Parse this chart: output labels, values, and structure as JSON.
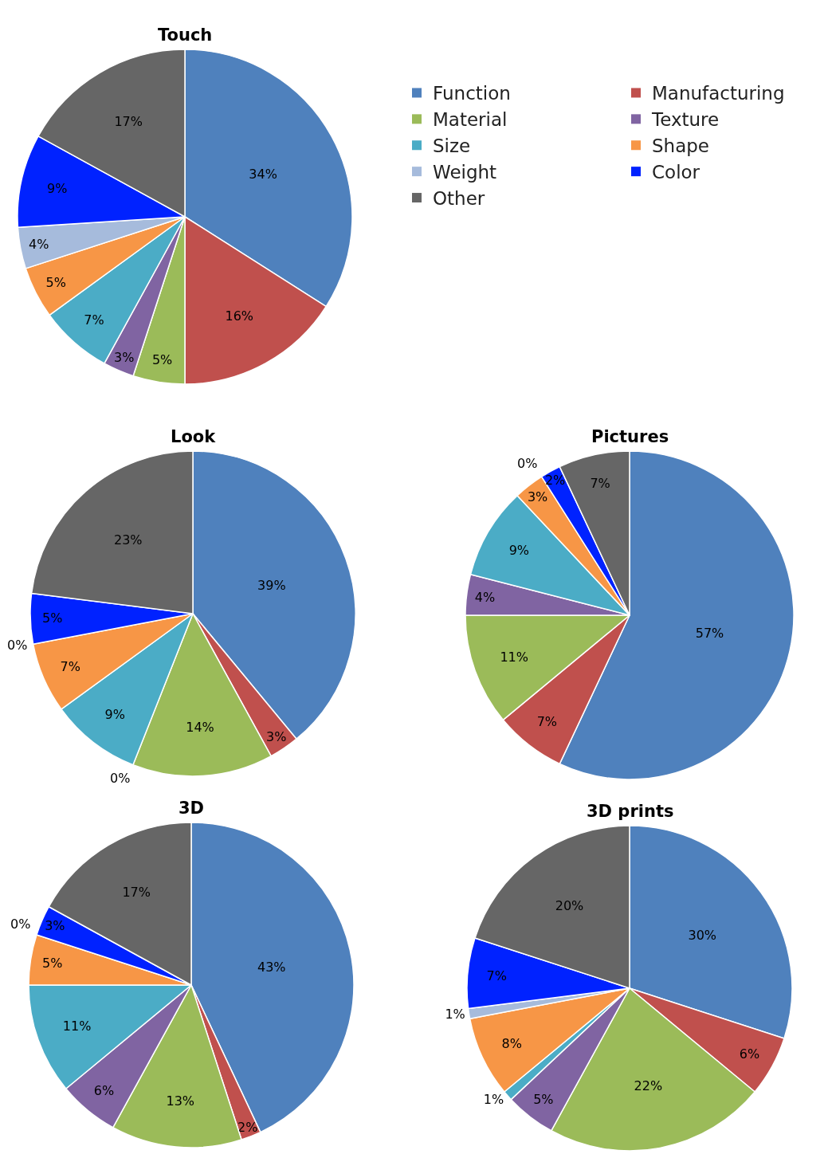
{
  "chart_data": [
    {
      "type": "pie",
      "title": "Touch",
      "legend": "right",
      "categories": [
        "Function",
        "Manufacturing",
        "Material",
        "Texture",
        "Size",
        "Shape",
        "Weight",
        "Color",
        "Other"
      ],
      "values": [
        34,
        16,
        5,
        3,
        7,
        5,
        4,
        9,
        17
      ],
      "value_labels": [
        "34%",
        "16%",
        "5%",
        "3%",
        "7%",
        "5%",
        "4%",
        "9%",
        "17%"
      ],
      "colors": [
        "#4f81bd",
        "#c0504d",
        "#9bbb59",
        "#8064a2",
        "#4bacc6",
        "#f79646",
        "#a6bbdc",
        "#0022ff",
        "#666666"
      ]
    },
    {
      "type": "pie",
      "title": "Look",
      "categories": [
        null,
        null,
        null,
        null,
        null,
        null,
        null,
        null,
        null
      ],
      "values": [
        39,
        3,
        14,
        0,
        9,
        7,
        0,
        5,
        23
      ],
      "value_labels": [
        "39%",
        "3%",
        "14%",
        "0%",
        "9%",
        "7%",
        "0%",
        "5%",
        "23%"
      ],
      "colors": [
        "#4f81bd",
        "#c0504d",
        "#9bbb59",
        "#8064a2",
        "#4bacc6",
        "#f79646",
        "#a6bbdc",
        "#0022ff",
        "#666666"
      ]
    },
    {
      "type": "pie",
      "title": "Pictures",
      "categories": [
        null,
        null,
        null,
        null,
        null,
        null,
        null,
        null,
        null
      ],
      "values": [
        57,
        7,
        11,
        4,
        9,
        3,
        0,
        2,
        7
      ],
      "value_labels": [
        "57%",
        "7%",
        "11%",
        "4%",
        "9%",
        "3%",
        "0%",
        "2%",
        "7%"
      ],
      "colors": [
        "#4f81bd",
        "#c0504d",
        "#9bbb59",
        "#8064a2",
        "#4bacc6",
        "#f79646",
        "#a6bbdc",
        "#0022ff",
        "#666666"
      ]
    },
    {
      "type": "pie",
      "title": "3D",
      "categories": [
        null,
        null,
        null,
        null,
        null,
        null,
        null,
        null,
        null
      ],
      "values": [
        43,
        2,
        13,
        6,
        11,
        5,
        0,
        3,
        17
      ],
      "value_labels": [
        "43%",
        "2%",
        "13%",
        "6%",
        "11%",
        "5%",
        "0%",
        "3%",
        "17%"
      ],
      "colors": [
        "#4f81bd",
        "#c0504d",
        "#9bbb59",
        "#8064a2",
        "#4bacc6",
        "#f79646",
        "#a6bbdc",
        "#0022ff",
        "#666666"
      ]
    },
    {
      "type": "pie",
      "title": "3D prints",
      "categories": [
        null,
        null,
        null,
        null,
        null,
        null,
        null,
        null,
        null
      ],
      "values": [
        30,
        6,
        22,
        5,
        1,
        8,
        1,
        7,
        20
      ],
      "value_labels": [
        "30%",
        "6%",
        "22%",
        "5%",
        "1%",
        "8%",
        "1%",
        "7%",
        "20%"
      ],
      "colors": [
        "#4f81bd",
        "#c0504d",
        "#9bbb59",
        "#8064a2",
        "#4bacc6",
        "#f79646",
        "#a6bbdc",
        "#0022ff",
        "#666666"
      ]
    }
  ]
}
